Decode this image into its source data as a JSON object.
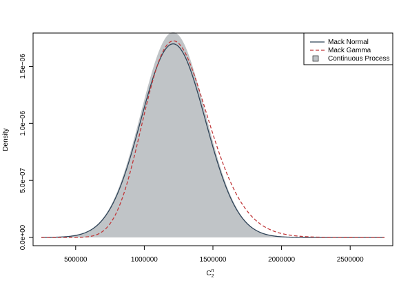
{
  "chart_data": {
    "type": "line",
    "title": "",
    "xlabel": "C",
    "xlabel_sub": "2",
    "xlabel_sup": "n",
    "ylabel": "Density",
    "xlim": [
      250000,
      2750000
    ],
    "ylim": [
      0,
      1.72e-06
    ],
    "x_ticks": [
      500000,
      1000000,
      1500000,
      2000000,
      2500000
    ],
    "x_tick_labels": [
      "500000",
      "1000000",
      "1500000",
      "2000000",
      "2500000"
    ],
    "y_ticks": [
      0,
      5e-07,
      1e-06,
      1.5e-06
    ],
    "y_tick_labels": [
      "0.0e+00",
      "5.0e−07",
      "1.0e−06",
      "1.5e−06"
    ],
    "grid": false,
    "legend_position": "top-right",
    "colors": {
      "normal": "#2f4458",
      "gamma": "#c0383a",
      "process_fill": "#c0c4c7"
    },
    "series": [
      {
        "name": "Mack Normal",
        "kind": "line",
        "style": "solid",
        "color": "#2f4458",
        "mean": 1210000,
        "sd": 235000
      },
      {
        "name": "Mack Gamma",
        "kind": "line",
        "style": "dashed",
        "color": "#c0383a",
        "mean": 1215000,
        "sd": 240000
      },
      {
        "name": "Continuous Process",
        "kind": "area",
        "color": "#c0c4c7",
        "mean": 1210000,
        "sd": 235000
      }
    ]
  }
}
